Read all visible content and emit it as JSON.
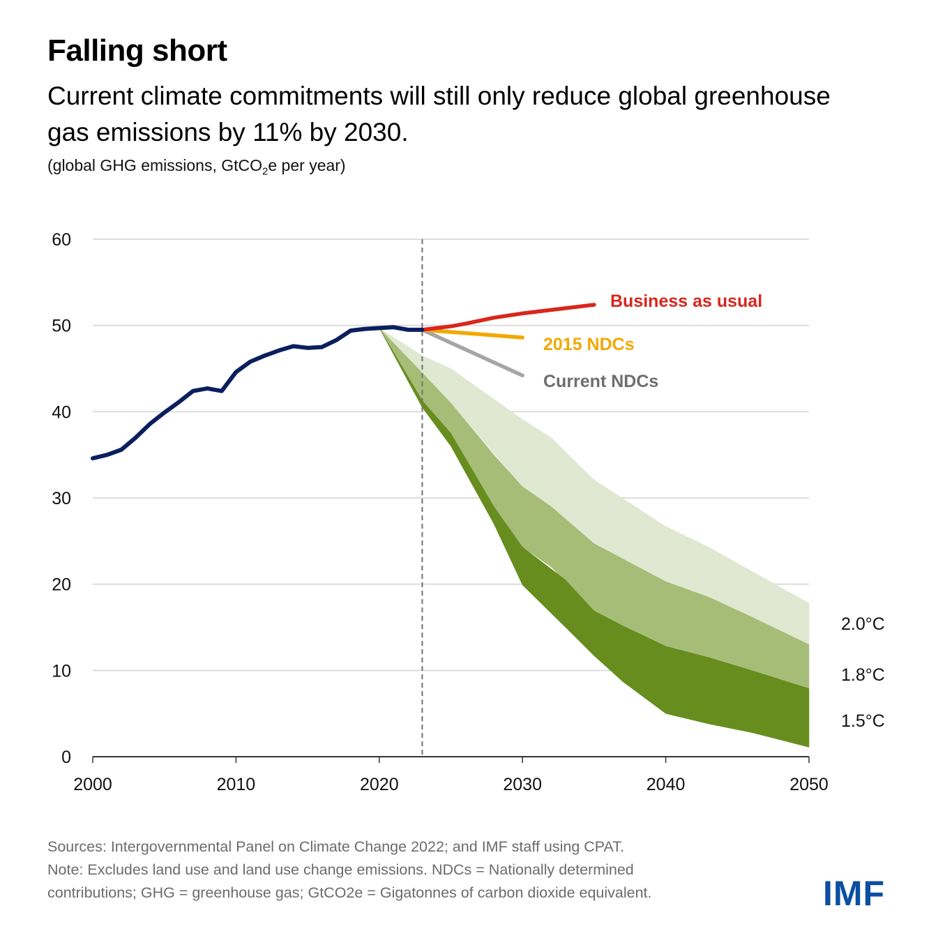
{
  "header": {
    "title": "Falling short",
    "subtitle": "Current climate commitments will still only reduce global greenhouse gas emissions by 11% by 2030.",
    "units_prefix": "(global GHG emissions, GtCO",
    "units_sub": "2",
    "units_suffix": "e per year)"
  },
  "chart_data": {
    "type": "line",
    "title": "Falling short",
    "ylabel": "global GHG emissions, GtCO2e per year",
    "xlabel": "",
    "xlim": [
      2000,
      2050
    ],
    "ylim": [
      0,
      60
    ],
    "xticks": [
      2000,
      2010,
      2020,
      2030,
      2040,
      2050
    ],
    "yticks": [
      0,
      10,
      20,
      30,
      40,
      50,
      60
    ],
    "xtick_labels": [
      "2000",
      "2010",
      "2020",
      "2030",
      "2040",
      "2050"
    ],
    "ytick_labels": [
      "0",
      "10",
      "20",
      "30",
      "40",
      "50",
      "60"
    ],
    "grid": true,
    "projection_start_marker": 2023,
    "colors": {
      "historical": "#0b1f5e",
      "business_as_usual": "#d9261c",
      "ndc_2015": "#f2a900",
      "current_ndc": "#a6a6a6",
      "band_20": "#e0e8d1",
      "band_18": "#a6bd78",
      "band_15": "#668d1e"
    },
    "series": [
      {
        "name": "Historical",
        "x": [
          2000,
          2001,
          2002,
          2003,
          2004,
          2005,
          2006,
          2007,
          2008,
          2009,
          2010,
          2011,
          2012,
          2013,
          2014,
          2015,
          2016,
          2017,
          2018,
          2019,
          2020,
          2021,
          2022,
          2023
        ],
        "values": [
          34.6,
          35.0,
          35.6,
          37.0,
          38.6,
          39.9,
          41.1,
          42.4,
          42.7,
          42.4,
          44.6,
          45.8,
          46.5,
          47.1,
          47.6,
          47.4,
          47.5,
          48.3,
          49.4,
          49.6,
          49.7,
          49.8,
          49.5,
          49.5
        ]
      },
      {
        "name": "Business as usual",
        "label": "Business as usual",
        "x": [
          2023,
          2025,
          2026,
          2028,
          2030,
          2032,
          2035
        ],
        "values": [
          49.5,
          49.9,
          50.2,
          50.9,
          51.4,
          51.8,
          52.4
        ]
      },
      {
        "name": "2015 NDCs",
        "label": "2015 NDCs",
        "x": [
          2023,
          2030
        ],
        "values": [
          49.5,
          48.6
        ]
      },
      {
        "name": "Current NDCs",
        "label": "Current NDCs",
        "x": [
          2023,
          2030
        ],
        "values": [
          49.5,
          44.2
        ]
      }
    ],
    "bands": [
      {
        "name": "2.0°C",
        "label": "2.0°C",
        "x": [
          2020,
          2023,
          2025,
          2030,
          2032,
          2035,
          2040,
          2043,
          2046,
          2050
        ],
        "upper": [
          49.7,
          46.5,
          45.0,
          39.1,
          37.0,
          32.1,
          26.7,
          24.3,
          21.5,
          17.8
        ],
        "lower": [
          49.7,
          44.5,
          41.0,
          31.3,
          29.0,
          24.7,
          20.3,
          18.5,
          16.2,
          13.0
        ]
      },
      {
        "name": "1.8°C",
        "label": "1.8°C",
        "x": [
          2020,
          2023,
          2025,
          2028,
          2030,
          2032,
          2035,
          2040,
          2043,
          2046,
          2050
        ],
        "upper": [
          49.7,
          44.5,
          41.0,
          35.0,
          31.3,
          29.0,
          24.7,
          20.3,
          18.5,
          16.2,
          13.0
        ],
        "lower": [
          49.7,
          41.3,
          37.5,
          29.0,
          24.3,
          22.0,
          16.9,
          12.8,
          11.5,
          10.0,
          7.9
        ]
      },
      {
        "name": "1.5°C",
        "label": "1.5°C",
        "x": [
          2020,
          2023,
          2025,
          2028,
          2030,
          2033,
          2035,
          2037,
          2040,
          2043,
          2046,
          2050
        ],
        "upper": [
          49.7,
          41.3,
          37.5,
          29.0,
          24.3,
          20.5,
          16.9,
          15.2,
          12.8,
          11.5,
          10.0,
          7.9
        ],
        "lower": [
          49.7,
          40.5,
          36.0,
          27.0,
          19.9,
          15.0,
          11.7,
          8.7,
          5.0,
          3.8,
          2.8,
          1.1
        ]
      }
    ]
  },
  "footer": {
    "sources": "Sources: Intergovernmental Panel on Climate Change 2022; and IMF staff using CPAT.",
    "note_line1": "Note: Excludes land use and land use change emissions. NDCs = Nationally determined",
    "note_line2": "contributions; GHG = greenhouse gas; GtCO2e = Gigatonnes of carbon dioxide equivalent.",
    "logo": "IMF"
  }
}
